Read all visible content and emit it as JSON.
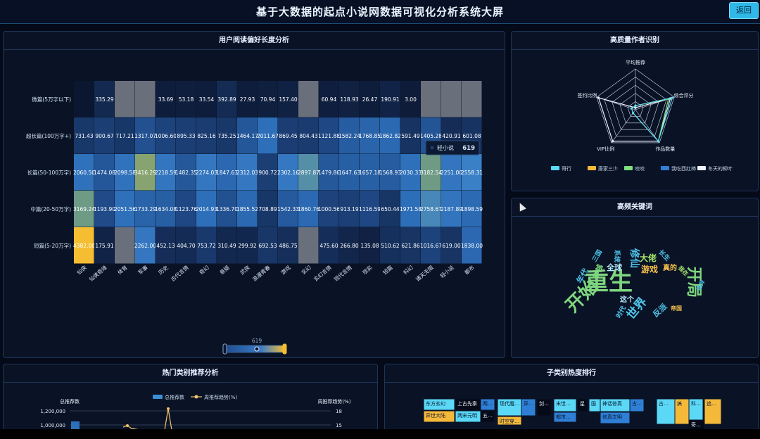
{
  "header": {
    "title": "基于大数据的起点小说网数据可视化分析系统大屏",
    "back_label": "返回"
  },
  "heatmap_panel": {
    "title": "用户阅读偏好长度分析",
    "tooltip": {
      "label": "轻小说",
      "value": "619"
    },
    "slider_value": "619"
  },
  "radar_panel": {
    "title": "高质量作者识别",
    "indicators": [
      "平均推荐",
      "综合评分",
      "作品数量",
      "VIP比例",
      "签约比例"
    ],
    "legend": [
      "哥行",
      "唐家三少",
      "咬咬",
      "我吃西红柿",
      "冬天的柳叶"
    ],
    "colors": [
      "#5ad8f5",
      "#f5b93a",
      "#7ee07e",
      "#2f7fd6",
      "#eef2ff"
    ]
  },
  "wordcloud_panel": {
    "title": "高频关键词",
    "words": [
      {
        "t": "重生",
        "c": "#7ed67e"
      },
      {
        "t": "开局",
        "c": "#7ed67e"
      },
      {
        "t": "开始",
        "c": "#7ed67e"
      },
      {
        "t": "世界",
        "c": "#4fc3e8"
      },
      {
        "t": "大佬",
        "c": "#a6e36a"
      },
      {
        "t": "游戏",
        "c": "#f5c04a"
      },
      {
        "t": "全球",
        "c": "#b7f0ff"
      },
      {
        "t": "修仙",
        "c": "#4fc3e8"
      },
      {
        "t": "穿越",
        "c": "#7ed67e"
      },
      {
        "t": "年代",
        "c": "#4fc3e8"
      },
      {
        "t": "这个",
        "c": "#b7f0ff"
      },
      {
        "t": "反派",
        "c": "#4fc3e8"
      },
      {
        "t": "系统",
        "c": "#4fc3e8"
      },
      {
        "t": "三国",
        "c": "#4fc3e8"
      },
      {
        "t": "时代",
        "c": "#4fc3e8"
      },
      {
        "t": "真的",
        "c": "#f5c04a"
      },
      {
        "t": "帝国",
        "c": "#f5c04a"
      },
      {
        "t": "长生",
        "c": "#4fc3e8"
      },
      {
        "t": "我在",
        "c": "#a6e36a"
      },
      {
        "t": "诡异",
        "c": "#4fc3e8"
      }
    ]
  },
  "hot_panel": {
    "title": "热门类别推荐分析",
    "left_axis_title": "总推荐数",
    "right_axis_title": "周推荐趋势(%)",
    "legend_bar": "总推荐数",
    "legend_line": "周推荐趋势(%)",
    "left_ticks": [
      "1,200,000",
      "1,000,000"
    ],
    "right_ticks": [
      "18",
      "15"
    ]
  },
  "treemap_panel": {
    "title": "子类别热度排行",
    "tiles": [
      {
        "t": "东方玄幻",
        "c": "#5ad8f5"
      },
      {
        "t": "上古先秦",
        "c": "#050a18"
      },
      {
        "t": "两…",
        "c": "#2f7fd6"
      },
      {
        "t": "异世大陆",
        "c": "#f5b93a"
      },
      {
        "t": "两宋元明",
        "c": "#5ad8f5"
      },
      {
        "t": "五…",
        "c": "#050a18"
      },
      {
        "t": "现代魔…",
        "c": "#5ad8f5"
      },
      {
        "t": "异…",
        "c": "#2f7fd6"
      },
      {
        "t": "剑…",
        "c": "#050a18"
      },
      {
        "t": "时空穿…",
        "c": "#f5b93a"
      },
      {
        "t": "末世…",
        "c": "#5ad8f5"
      },
      {
        "t": "星",
        "c": "#050a18"
      },
      {
        "t": "国",
        "c": "#5ad8f5"
      },
      {
        "t": "都市…",
        "c": "#2f7fd6"
      },
      {
        "t": "神话修真",
        "c": "#5ad8f5"
      },
      {
        "t": "古…",
        "c": "#2f7fd6"
      },
      {
        "t": "修真文明",
        "c": "#2f7fd6"
      },
      {
        "t": "古…",
        "c": "#5ad8f5"
      },
      {
        "t": "搞",
        "c": "#f5b93a"
      },
      {
        "t": "科…",
        "c": "#5ad8f5"
      },
      {
        "t": "追…",
        "c": "#f5b93a"
      },
      {
        "t": "奇…",
        "c": "#050a18"
      }
    ]
  },
  "chart_data": {
    "type": "heatmap",
    "title": "用户阅读偏好长度分析",
    "y_categories": [
      "微篇(5万字以下)",
      "超长篇(100万字+)",
      "长篇(50-100万字)",
      "中篇(20-50万字)",
      "短篇(5-20万字)"
    ],
    "x_categories": [
      "仙侠",
      "仙侠奇缘",
      "体育",
      "军事",
      "历史",
      "古代言情",
      "奇幻",
      "悬疑",
      "武侠",
      "浪漫青春",
      "游戏",
      "玄幻",
      "玄幻言情",
      "现代言情",
      "现实",
      "短篇",
      "科幻",
      "诸天无限",
      "轻小说",
      "都市"
    ],
    "values": [
      [
        null,
        335.29,
        null,
        null,
        33.69,
        53.18,
        33.54,
        392.89,
        27.93,
        70.94,
        157.4,
        null,
        60.94,
        118.93,
        26.47,
        190.91,
        3.0,
        null,
        null,
        null
      ],
      [
        731.43,
        900.67,
        717.21,
        1317.07,
        1006.6,
        895.33,
        825.16,
        735.25,
        1464.17,
        2011.67,
        869.45,
        804.43,
        1121.88,
        1582.24,
        1768.85,
        1862.82,
        591.49,
        1405.28,
        420.91,
        601.08
      ],
      [
        2060.5,
        1474.08,
        2098.58,
        3416.29,
        2218.59,
        1482.35,
        2274.03,
        1847.63,
        2312.03,
        900.72,
        2302.16,
        2897.87,
        1479.86,
        1647.63,
        1657.18,
        1568.93,
        2030.33,
        3182.54,
        2251.0,
        2558.31
      ],
      [
        3169.24,
        1193.9,
        2051.56,
        1733.29,
        1634.08,
        1123.76,
        2014.93,
        1336.7,
        1855.52,
        708.89,
        1542.33,
        1860.76,
        1000.56,
        913.19,
        1116.59,
        650.44,
        1971.58,
        2758.67,
        2187.89,
        1898.59
      ],
      [
        4382.0,
        175.91,
        null,
        2262.0,
        452.13,
        404.7,
        753.72,
        310.49,
        299.92,
        692.53,
        486.75,
        null,
        475.6,
        266.8,
        135.08,
        510.62,
        621.86,
        1016.67,
        619.0,
        1838.0
      ]
    ],
    "grey_cells": [
      [
        0,
        2
      ],
      [
        0,
        3
      ],
      [
        0,
        11
      ],
      [
        0,
        17
      ],
      [
        0,
        18
      ],
      [
        0,
        19
      ],
      [
        4,
        2
      ],
      [
        4,
        11
      ]
    ],
    "visual_map": {
      "min": 0,
      "max": 4382,
      "current": 619
    }
  }
}
